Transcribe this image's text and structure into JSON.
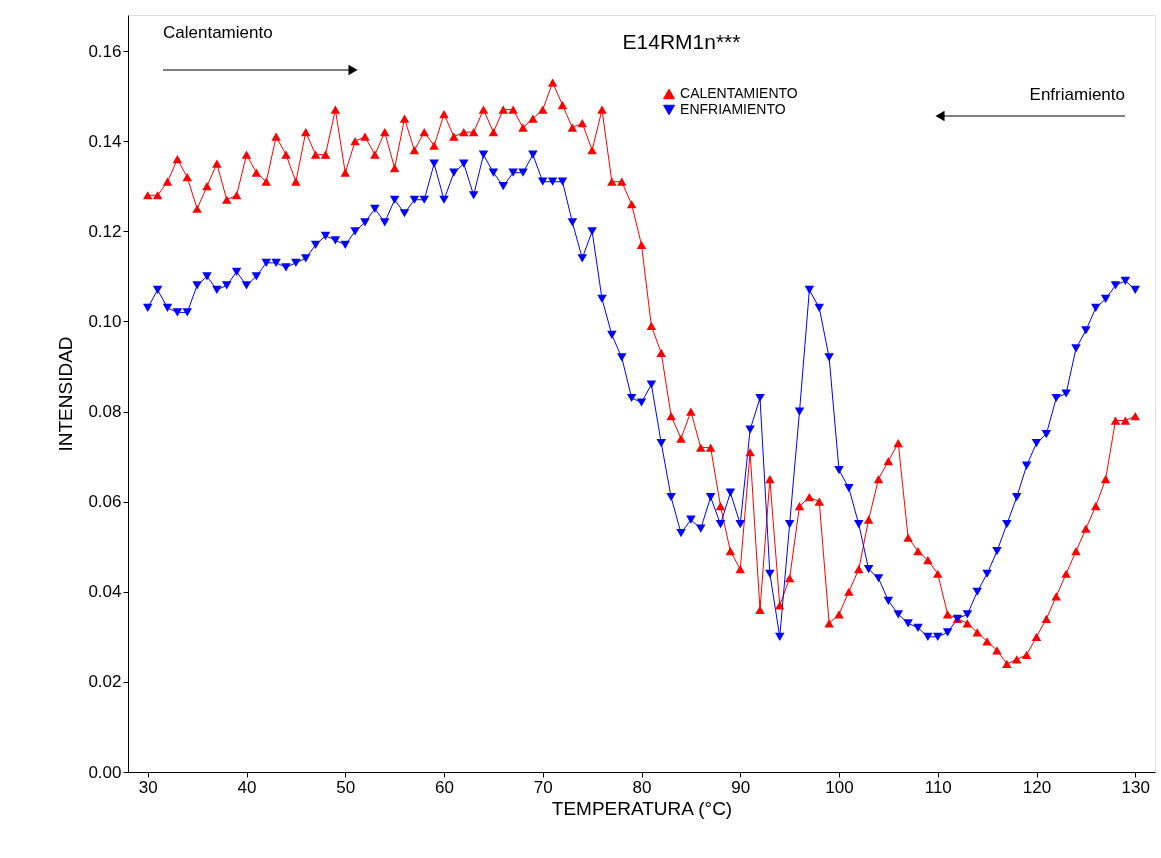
{
  "chart_data": {
    "type": "line",
    "title": "E14RM1n***",
    "xlabel": "TEMPERATURA (°C)",
    "ylabel": "INTENSIDAD",
    "annotations": [
      "Calentamiento",
      "Enfriamiento"
    ],
    "x": [
      30,
      31,
      32,
      33,
      34,
      35,
      36,
      37,
      38,
      39,
      40,
      41,
      42,
      43,
      44,
      45,
      46,
      47,
      48,
      49,
      50,
      51,
      52,
      53,
      54,
      55,
      56,
      57,
      58,
      59,
      60,
      61,
      62,
      63,
      64,
      65,
      66,
      67,
      68,
      69,
      70,
      71,
      72,
      73,
      74,
      75,
      76,
      77,
      78,
      79,
      80,
      81,
      82,
      83,
      84,
      85,
      86,
      87,
      88,
      89,
      90,
      91,
      92,
      93,
      94,
      95,
      96,
      97,
      98,
      99,
      100,
      101,
      102,
      103,
      104,
      105,
      106,
      107,
      108,
      109,
      110,
      111,
      112,
      113,
      114,
      115,
      116,
      117,
      118,
      119,
      120,
      121,
      122,
      123,
      124,
      125,
      126,
      127,
      128,
      129,
      130
    ],
    "series": [
      {
        "name": "CALENTAMIENTO",
        "color": "#ff0000",
        "marker": "triangle",
        "values": [
          0.128,
          0.128,
          0.131,
          0.136,
          0.132,
          0.125,
          0.13,
          0.135,
          0.127,
          0.128,
          0.137,
          0.133,
          0.131,
          0.141,
          0.137,
          0.131,
          0.142,
          0.137,
          0.137,
          0.147,
          0.133,
          0.14,
          0.141,
          0.137,
          0.142,
          0.134,
          0.145,
          0.138,
          0.142,
          0.139,
          0.146,
          0.141,
          0.142,
          0.142,
          0.147,
          0.142,
          0.147,
          0.147,
          0.143,
          0.145,
          0.147,
          0.153,
          0.148,
          0.143,
          0.144,
          0.138,
          0.147,
          0.131,
          0.131,
          0.126,
          0.117,
          0.099,
          0.093,
          0.079,
          0.074,
          0.08,
          0.072,
          0.072,
          0.059,
          0.049,
          0.045,
          0.071,
          0.036,
          0.065,
          0.037,
          0.043,
          0.059,
          0.061,
          0.06,
          0.033,
          0.035,
          0.04,
          0.045,
          0.056,
          0.065,
          0.069,
          0.073,
          0.052,
          0.049,
          0.047,
          0.044,
          0.035,
          0.034,
          0.033,
          0.031,
          0.029,
          0.027,
          0.024,
          0.025,
          0.026,
          0.03,
          0.034,
          0.039,
          0.044,
          0.049,
          0.054,
          0.059,
          0.065,
          0.078,
          0.078,
          0.079
        ]
      },
      {
        "name": "ENFRIAMIENTO",
        "color": "#0000ff",
        "marker": "triangle-down",
        "values": [
          0.103,
          0.107,
          0.103,
          0.102,
          0.102,
          0.108,
          0.11,
          0.107,
          0.108,
          0.111,
          0.108,
          0.11,
          0.113,
          0.113,
          0.112,
          0.113,
          0.114,
          0.117,
          0.119,
          0.118,
          0.117,
          0.12,
          0.122,
          0.125,
          0.122,
          0.127,
          0.124,
          0.127,
          0.127,
          0.135,
          0.127,
          0.133,
          0.135,
          0.128,
          0.137,
          0.133,
          0.13,
          0.133,
          0.133,
          0.137,
          0.131,
          0.131,
          0.131,
          0.122,
          0.114,
          0.12,
          0.105,
          0.097,
          0.092,
          0.083,
          0.082,
          0.086,
          0.073,
          0.061,
          0.053,
          0.056,
          0.054,
          0.061,
          0.055,
          0.062,
          0.055,
          0.076,
          0.083,
          0.044,
          0.03,
          0.055,
          0.08,
          0.107,
          0.103,
          0.092,
          0.067,
          0.063,
          0.055,
          0.045,
          0.043,
          0.038,
          0.035,
          0.033,
          0.032,
          0.03,
          0.03,
          0.031,
          0.034,
          0.035,
          0.04,
          0.044,
          0.049,
          0.055,
          0.061,
          0.068,
          0.073,
          0.075,
          0.083,
          0.084,
          0.094,
          0.098,
          0.103,
          0.105,
          0.108,
          0.109,
          0.107
        ]
      }
    ],
    "xlim": [
      28,
      132
    ],
    "ylim": [
      0,
      0.168
    ],
    "xticks": [
      30,
      40,
      50,
      60,
      70,
      80,
      90,
      100,
      110,
      120,
      130
    ],
    "yticks": [
      {
        "value": 0,
        "label": "0.00"
      },
      {
        "value": 0.02,
        "label": "0.02"
      },
      {
        "value": 0.04,
        "label": "0.04"
      },
      {
        "value": 0.06,
        "label": "0.06"
      },
      {
        "value": 0.08,
        "label": "0.08"
      },
      {
        "value": 0.1,
        "label": "0.10"
      },
      {
        "value": 0.12,
        "label": "0.12"
      },
      {
        "value": 0.14,
        "label": "0.14"
      },
      {
        "value": 0.16,
        "label": "0.16"
      }
    ],
    "grid": false,
    "legend": "top right",
    "line_style": "solid"
  }
}
